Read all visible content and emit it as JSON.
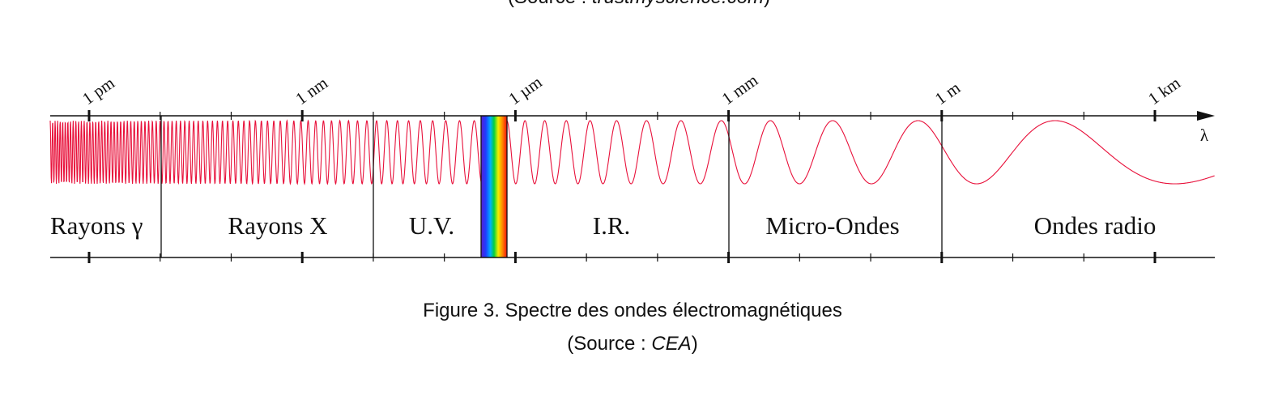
{
  "header": {
    "source_prefix": "(Source :",
    "source_name": "trustmyscience.com",
    "source_suffix": ")"
  },
  "scale": {
    "ticks": [
      "1 pm",
      "1 nm",
      "1 µm",
      "1 mm",
      "1 m",
      "1 km"
    ],
    "axis_label": "λ"
  },
  "regions": [
    "Rayons γ",
    "Rayons X",
    "U.V.",
    "I.R.",
    "Micro-Ondes",
    "Ondes radio"
  ],
  "caption": {
    "title": "Figure 3. Spectre des ondes électromagnétiques",
    "source_prefix": "(Source :",
    "source_name": "CEA",
    "source_suffix": ")"
  }
}
